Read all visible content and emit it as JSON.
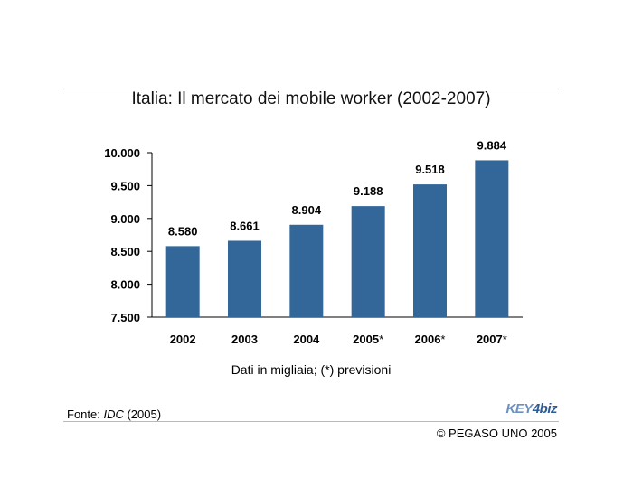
{
  "chart_data": {
    "type": "bar",
    "title": "Italia: Il mercato dei mobile worker (2002-2007)",
    "categories": [
      "2002",
      "2003",
      "2004",
      "2005",
      "2006",
      "2007"
    ],
    "category_marks": [
      "",
      "",
      "",
      "*",
      "*",
      "*"
    ],
    "values": [
      8580,
      8661,
      8904,
      9188,
      9518,
      9884
    ],
    "value_labels": [
      "8.580",
      "8.661",
      "8.904",
      "9.188",
      "9.518",
      "9.884"
    ],
    "yticks": [
      7500,
      8000,
      8500,
      9000,
      9500,
      10000
    ],
    "ytick_labels": [
      "7.500",
      "8.000",
      "8.500",
      "9.000",
      "9.500",
      "10.000"
    ],
    "ylim": [
      7500,
      10000
    ],
    "grid": false,
    "bar_color": "#336699",
    "note": "Dati in migliaia; (*) previsioni"
  },
  "footer": {
    "source_prefix": "Fonte: ",
    "source_name": "IDC",
    "source_year": " (2005)",
    "copyright": "© PEGASO UNO 2005",
    "logo_key": "KEY",
    "logo_num": "4",
    "logo_biz": "biz"
  }
}
